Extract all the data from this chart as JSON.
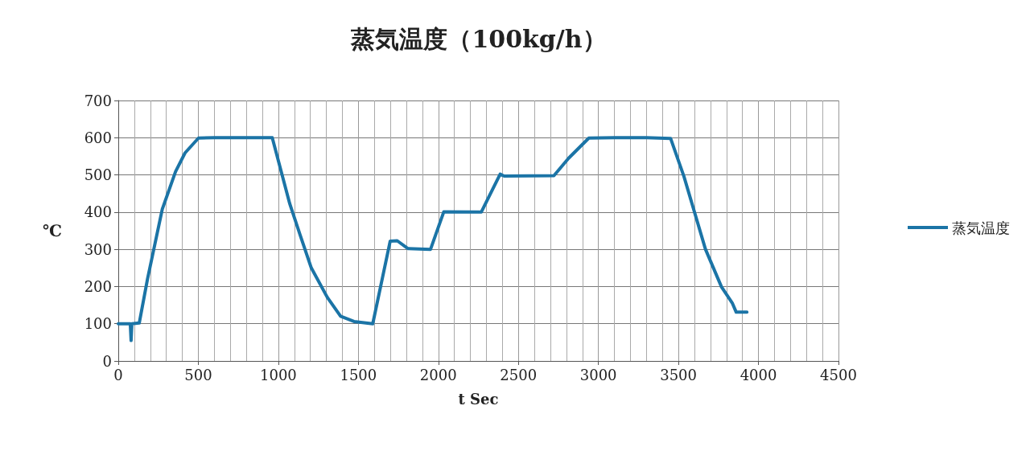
{
  "chart_data": {
    "type": "line",
    "title": "蒸気温度（100kg/h）",
    "xlabel": "t Sec",
    "ylabel": "℃",
    "series": [
      {
        "name": "蒸気温度",
        "color": "#1b74a6",
        "x": [
          0,
          60,
          75,
          80,
          85,
          131,
          183,
          275,
          358,
          417,
          501,
          600,
          700,
          800,
          962,
          1071,
          1138,
          1206,
          1306,
          1389,
          1473,
          1590,
          1699,
          1743,
          1809,
          1951,
          2034,
          2268,
          2386,
          2411,
          2722,
          2814,
          2940,
          3100,
          3300,
          3451,
          3535,
          3669,
          3769,
          3836,
          3861,
          3928
        ],
        "values": [
          100,
          100,
          100,
          55,
          100,
          102,
          221,
          408,
          509,
          559,
          599,
          600,
          600,
          600,
          600,
          423,
          336,
          250,
          171,
          120,
          106,
          100,
          322,
          323,
          302,
          300,
          401,
          400,
          502,
          497,
          498,
          545,
          599,
          600,
          600,
          598,
          495,
          300,
          199,
          156,
          131,
          131
        ]
      }
    ],
    "xlim": [
      0,
      4500
    ],
    "xticks": [
      0,
      500,
      1000,
      1500,
      2000,
      2500,
      3000,
      3500,
      4000,
      4500
    ],
    "ylim": [
      0,
      700
    ],
    "yticks": [
      0,
      100,
      200,
      300,
      400,
      500,
      600,
      700
    ],
    "grid": true,
    "legend": "right",
    "marker": "none",
    "line_style": "solid"
  }
}
